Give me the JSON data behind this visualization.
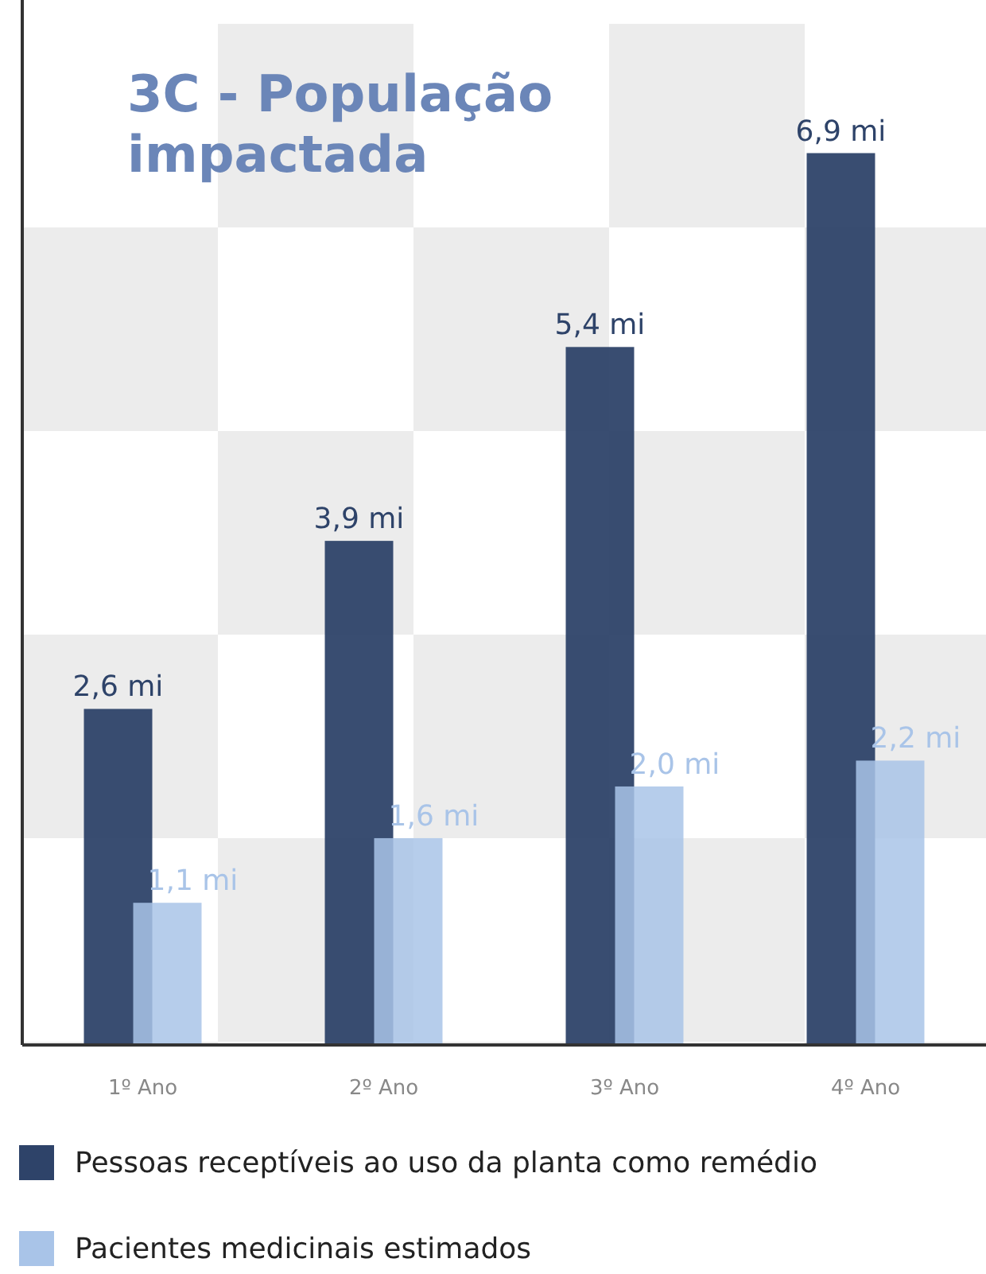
{
  "chart_data": {
    "type": "bar",
    "title": "3C - População impactada",
    "categories": [
      "1º Ano",
      "2º Ano",
      "3º Ano",
      "4º Ano"
    ],
    "series": [
      {
        "name": "Pessoas receptíveis ao uso da planta como remédio",
        "color": "#2e4369",
        "values": [
          2.6,
          3.9,
          5.4,
          6.9
        ],
        "value_labels": [
          "2,6 mi",
          "3,9 mi",
          "5,4 mi",
          "6,9 mi"
        ]
      },
      {
        "name": "Pacientes medicinais estimados",
        "color": "#a9c4e8",
        "values": [
          1.1,
          1.6,
          2.0,
          2.2
        ],
        "value_labels": [
          "1,1 mi",
          "1,6 mi",
          "2,0 mi",
          "2,2 mi"
        ]
      }
    ],
    "ylim": [
      0,
      7.9
    ],
    "legend": "bottom",
    "grid": false
  }
}
